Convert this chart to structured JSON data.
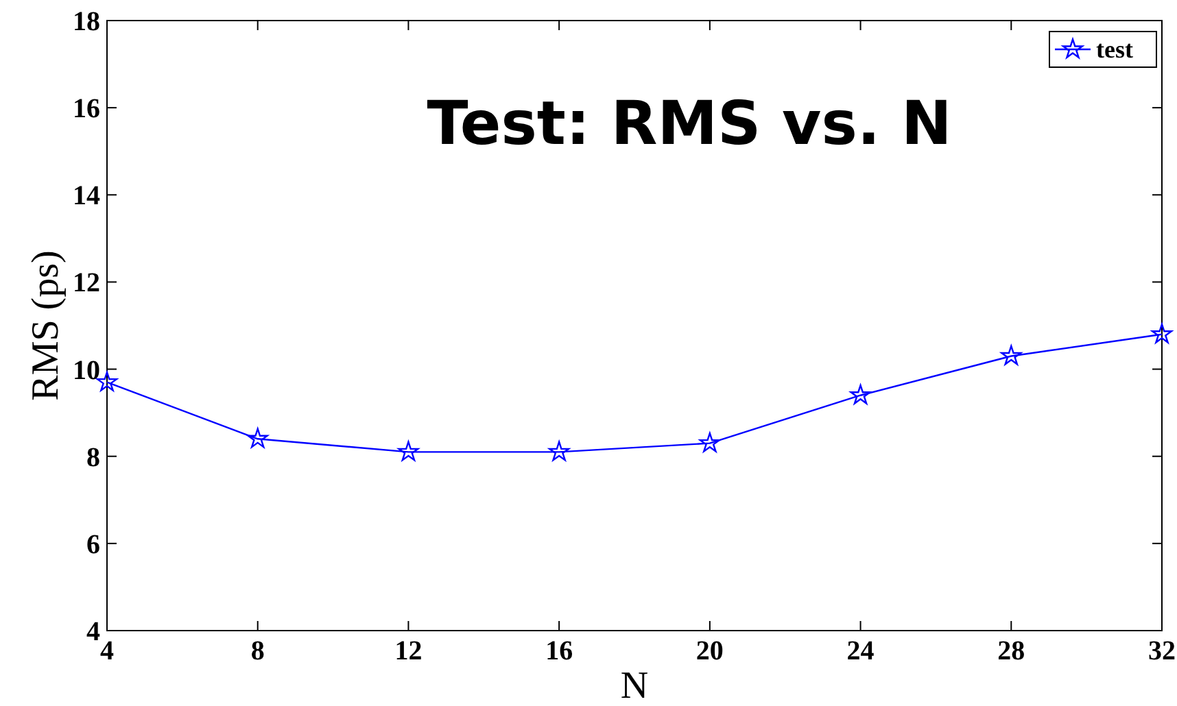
{
  "chart_data": {
    "type": "line",
    "title": "Test: RMS vs. N",
    "xlabel": "N",
    "ylabel": "RMS (ps)",
    "x": [
      4,
      8,
      12,
      16,
      20,
      24,
      28,
      32
    ],
    "series": [
      {
        "name": "test",
        "color": "#0000ff",
        "values": [
          9.7,
          8.4,
          8.1,
          8.1,
          8.3,
          9.4,
          10.3,
          10.8
        ]
      }
    ],
    "xlim": [
      4,
      32
    ],
    "xticks": [
      4,
      8,
      12,
      16,
      20,
      24,
      28,
      32
    ],
    "ylim": [
      4,
      18
    ],
    "yticks": [
      4,
      6,
      8,
      10,
      12,
      14,
      16,
      18
    ],
    "grid": false,
    "legend": "top right",
    "marker": "star",
    "line_style": "solid"
  }
}
